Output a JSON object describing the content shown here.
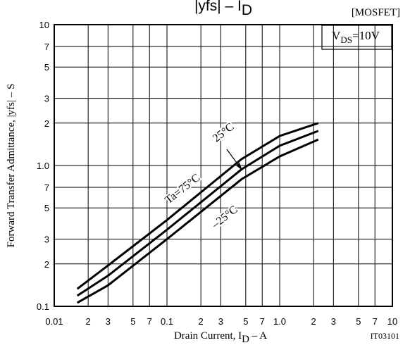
{
  "chart_data": {
    "type": "line",
    "title_parts": [
      "|yfs|  –  I",
      "D"
    ],
    "tag": "[MOSFET]",
    "condition_parts": [
      "V",
      "DS",
      "=10V"
    ],
    "x_label_parts": [
      "Drain Current, I",
      "D",
      "  –  A"
    ],
    "y_label": "Forward Transfer Admittance, |yfs|  –  S",
    "figure_code": "IT03101",
    "xscale": "log",
    "yscale": "log",
    "grid": true,
    "xlim": [
      0.01,
      10
    ],
    "ylim": [
      0.1,
      10
    ],
    "xticks": [
      {
        "value": 0.01,
        "label": "0.01"
      },
      {
        "value": 0.02,
        "label": "2"
      },
      {
        "value": 0.03,
        "label": "3"
      },
      {
        "value": 0.05,
        "label": "5"
      },
      {
        "value": 0.07,
        "label": "7"
      },
      0.1,
      {
        "value": 0.2,
        "label": "2"
      },
      {
        "value": 0.3,
        "label": "3"
      },
      {
        "value": 0.5,
        "label": "5"
      },
      {
        "value": 0.7,
        "label": "7"
      },
      {
        "value": 1,
        "label": "1.0"
      },
      {
        "value": 2,
        "label": "2"
      },
      {
        "value": 3,
        "label": "3"
      },
      {
        "value": 5,
        "label": "5"
      },
      {
        "value": 7,
        "label": "7"
      },
      10
    ],
    "yticks": [
      0.1,
      {
        "value": 0.2,
        "label": "2"
      },
      {
        "value": 0.3,
        "label": "3"
      },
      {
        "value": 0.5,
        "label": "5"
      },
      {
        "value": 0.7,
        "label": "7"
      },
      {
        "value": 1,
        "label": "1.0"
      },
      {
        "value": 2,
        "label": "2"
      },
      {
        "value": 3,
        "label": "3"
      },
      {
        "value": 5,
        "label": "5"
      },
      {
        "value": 7,
        "label": "7"
      },
      10
    ],
    "x": [
      0.016,
      0.03,
      0.1,
      0.46,
      1.0,
      2.2
    ],
    "color": "#000000",
    "series": [
      {
        "name": "Ta=75°C",
        "values": [
          0.133,
          0.195,
          0.41,
          1.11,
          1.62,
          2.0
        ]
      },
      {
        "name": "25°C",
        "values": [
          0.119,
          0.165,
          0.35,
          0.94,
          1.38,
          1.76
        ]
      },
      {
        "name": "–25°C",
        "values": [
          0.106,
          0.141,
          0.3,
          0.8,
          1.16,
          1.53
        ]
      }
    ]
  }
}
